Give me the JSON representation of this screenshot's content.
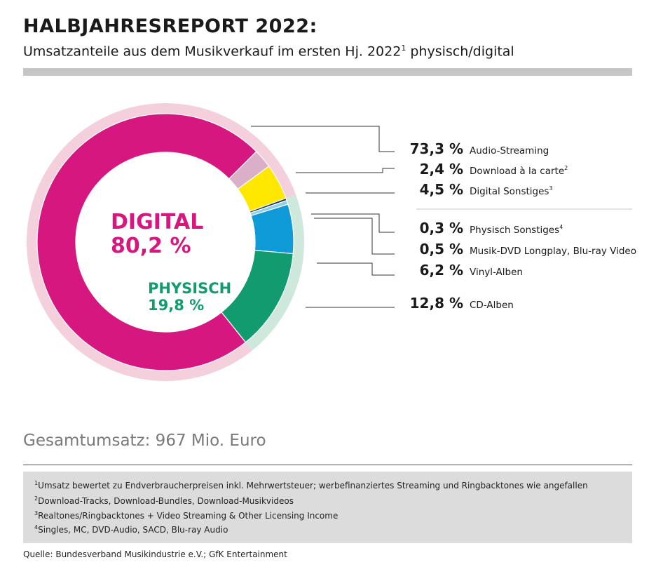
{
  "header": {
    "title": "HALBJAHRESREPORT 2022:",
    "subtitle_main": "Umsatzanteile aus dem Musikverkauf im ersten Hj. 2022",
    "subtitle_sup": "1",
    "subtitle_end": " physisch/digital"
  },
  "chart_data": {
    "type": "pie",
    "style": "donut",
    "groups": [
      {
        "name": "DIGITAL",
        "value_label": "80,2 %",
        "value": 80.2,
        "color": "#d6177f",
        "ring_color": "#f4cfdc"
      },
      {
        "name": "PHYSISCH",
        "value_label": "19,8 %",
        "value": 19.8,
        "color": "#119b6f",
        "ring_color": "#cfe8dc"
      }
    ],
    "slices": [
      {
        "label": "Audio-Streaming",
        "sup": "",
        "value": 73.3,
        "value_label": "73,3 %",
        "group": "DIGITAL",
        "color": "#d6177f"
      },
      {
        "label": "Download à la carte",
        "sup": "2",
        "value": 2.4,
        "value_label": "2,4 %",
        "group": "DIGITAL",
        "color": "#dcafc8"
      },
      {
        "label": "Digital Sonstiges",
        "sup": "3",
        "value": 4.5,
        "value_label": "4,5 %",
        "group": "DIGITAL",
        "color": "#ffe800"
      },
      {
        "label": "Physisch Sonstiges",
        "sup": "4",
        "value": 0.3,
        "value_label": "0,3 %",
        "group": "PHYSISCH",
        "color": "#1b3a5c"
      },
      {
        "label": "Musik-DVD Longplay, Blu-ray Video",
        "sup": "",
        "value": 0.5,
        "value_label": "0,5 %",
        "group": "PHYSISCH",
        "color": "#8fd0ea"
      },
      {
        "label": "Vinyl-Alben",
        "sup": "",
        "value": 6.2,
        "value_label": "6,2 %",
        "group": "PHYSISCH",
        "color": "#0f9ad8"
      },
      {
        "label": "CD-Alben",
        "sup": "",
        "value": 12.8,
        "value_label": "12,8 %",
        "group": "PHYSISCH",
        "color": "#119b6f"
      }
    ]
  },
  "total": "Gesamtumsatz: 967 Mio. Euro",
  "footnotes": [
    {
      "num": "1",
      "text": "Umsatz bewertet zu Endverbraucherpreisen inkl. Mehrwertsteuer; werbefinanziertes Streaming und Ringbacktones wie angefallen"
    },
    {
      "num": "2",
      "text": "Download-Tracks, Download-Bundles, Download-Musikvideos"
    },
    {
      "num": "3",
      "text": "Realtones/Ringbacktones + Video Streaming & Other Licensing Income"
    },
    {
      "num": "4",
      "text": "Singles, MC, DVD-Audio, SACD, Blu-ray Audio"
    }
  ],
  "source": "Quelle: Bundesverband Musikindustrie e.V.; GfK Entertainment"
}
